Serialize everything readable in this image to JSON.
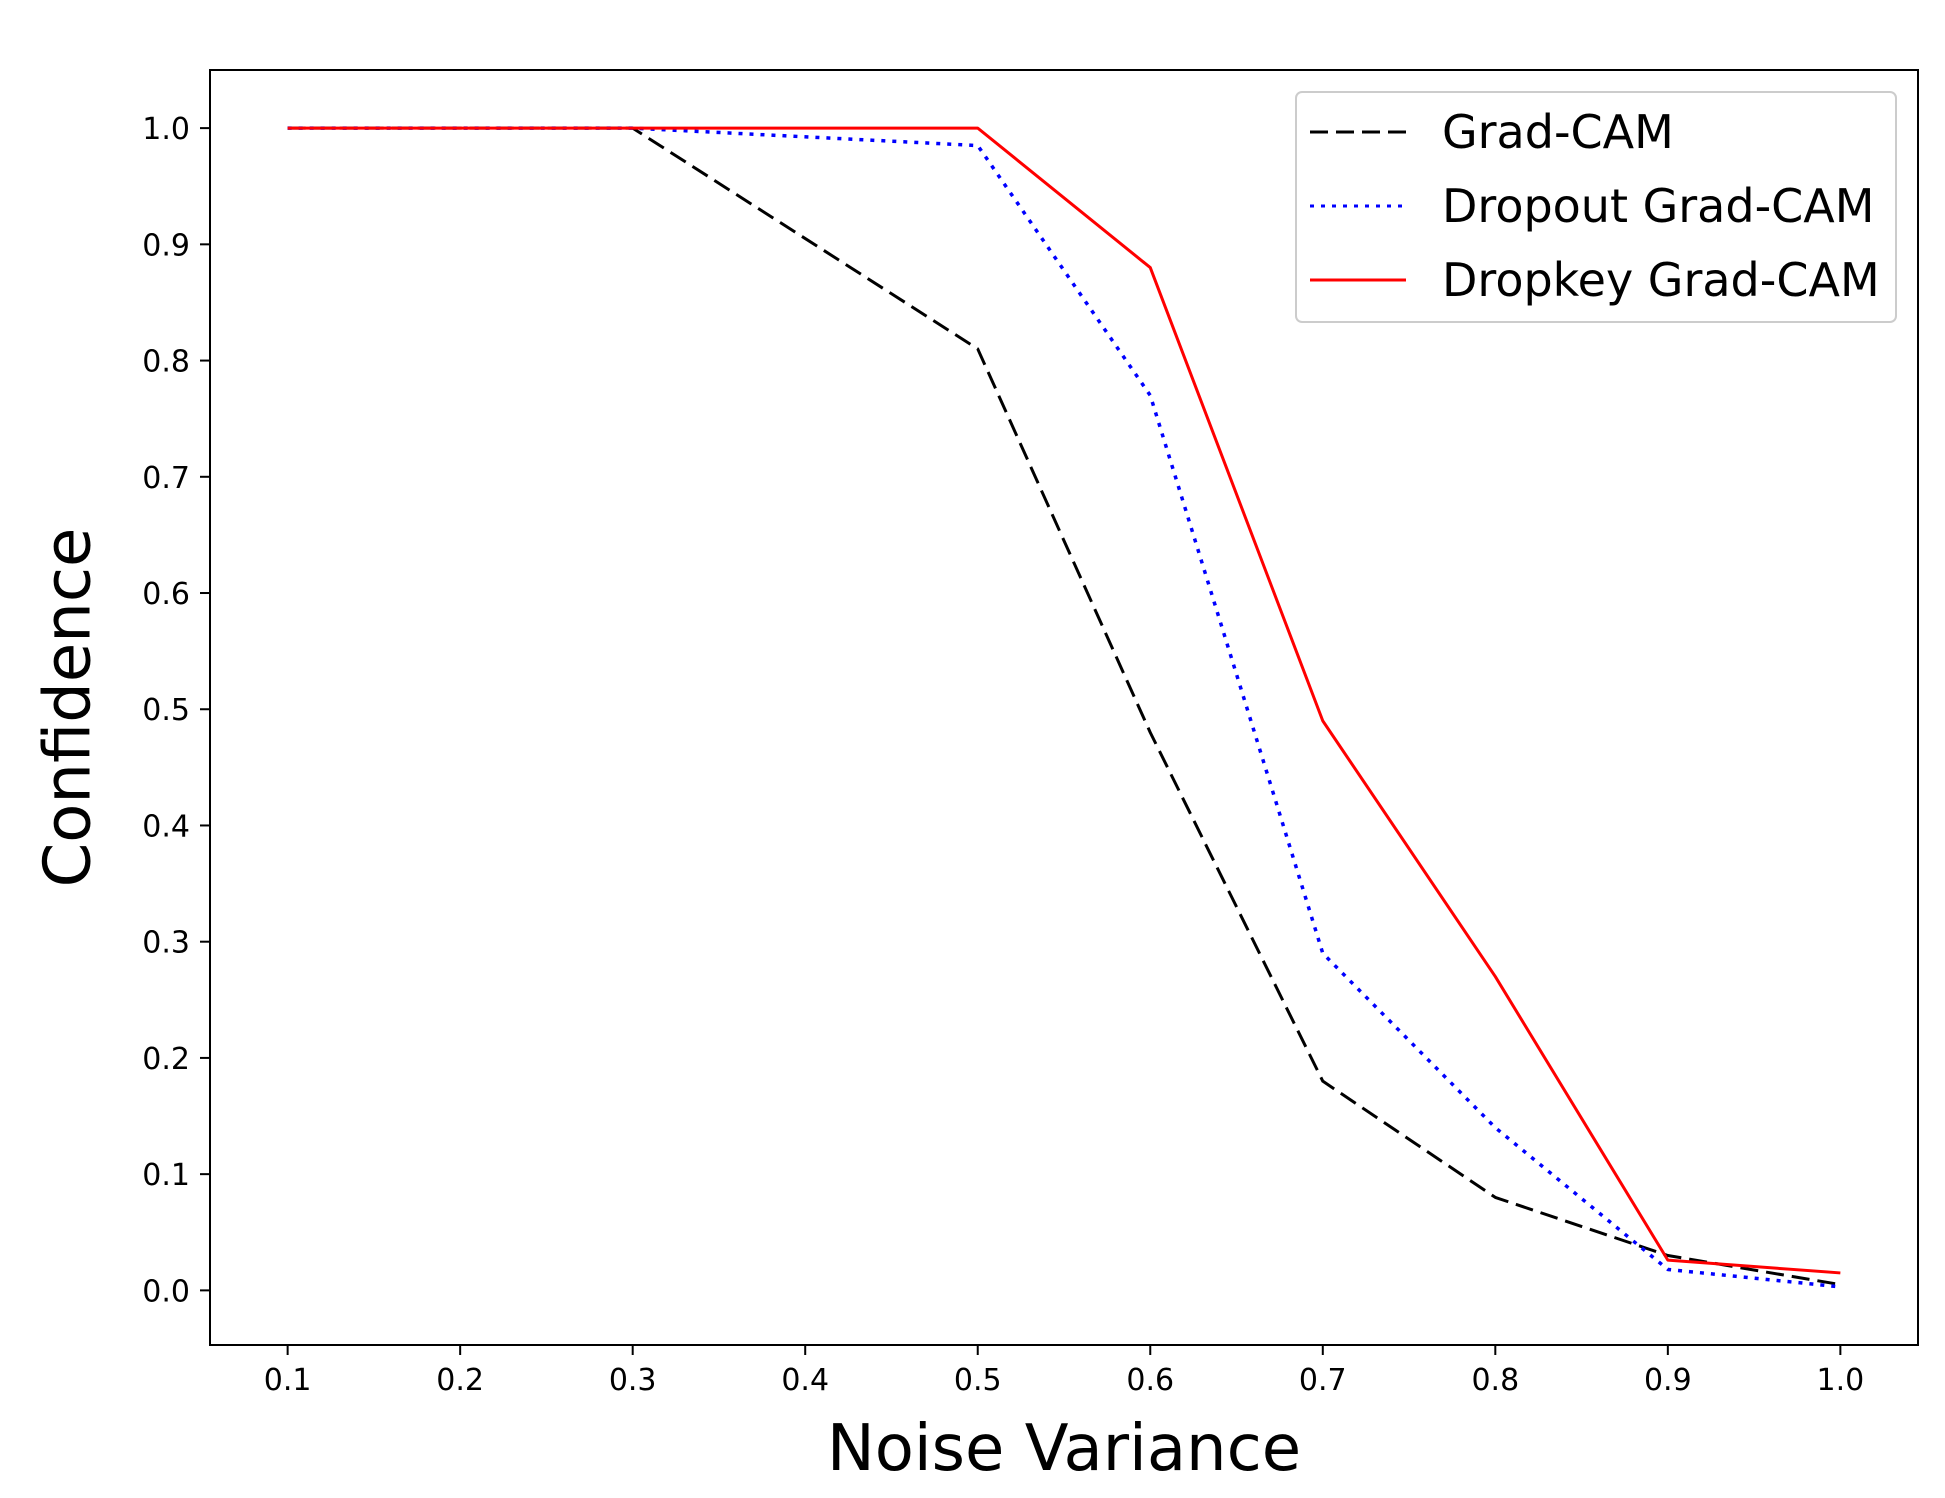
{
  "chart_data": {
    "type": "line",
    "title": "",
    "xlabel": "Noise Variance",
    "ylabel": "Confidence",
    "xlim": [
      0.055,
      1.045
    ],
    "ylim": [
      -0.047,
      1.05
    ],
    "xticks": [
      0.1,
      0.2,
      0.3,
      0.4,
      0.5,
      0.6,
      0.7,
      0.8,
      0.9,
      1.0
    ],
    "xtick_labels": [
      "0.1",
      "0.2",
      "0.3",
      "0.4",
      "0.5",
      "0.6",
      "0.7",
      "0.8",
      "0.9",
      "1.0"
    ],
    "yticks": [
      0.0,
      0.1,
      0.2,
      0.3,
      0.4,
      0.5,
      0.6,
      0.7,
      0.8,
      0.9,
      1.0
    ],
    "ytick_labels": [
      "0.0",
      "0.1",
      "0.2",
      "0.3",
      "0.4",
      "0.5",
      "0.6",
      "0.7",
      "0.8",
      "0.9",
      "1.0"
    ],
    "grid": false,
    "legend_position": "top-right",
    "x": [
      0.1,
      0.3,
      0.5,
      0.6,
      0.7,
      0.8,
      0.9,
      1.0
    ],
    "series": [
      {
        "name": "Grad-CAM",
        "color": "#000000",
        "style": "dashed",
        "values": [
          1.0,
          1.0,
          0.81,
          0.48,
          0.18,
          0.08,
          0.03,
          0.005
        ]
      },
      {
        "name": "Dropout Grad-CAM",
        "color": "#0000ff",
        "style": "dotted",
        "values": [
          1.0,
          1.0,
          0.985,
          0.77,
          0.29,
          0.14,
          0.018,
          0.003
        ]
      },
      {
        "name": "Dropkey Grad-CAM",
        "color": "#ff0000",
        "style": "solid",
        "values": [
          1.0,
          1.0,
          1.0,
          0.88,
          0.49,
          0.27,
          0.026,
          0.015
        ]
      }
    ]
  }
}
